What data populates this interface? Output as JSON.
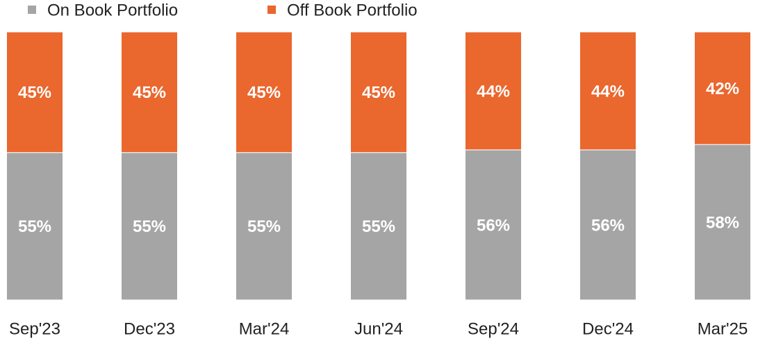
{
  "chart_data": {
    "type": "stacked-bar",
    "categories": [
      "Sep'23",
      "Dec'23",
      "Mar'24",
      "Jun'24",
      "Sep'24",
      "Dec'24",
      "Mar'25"
    ],
    "series": [
      {
        "name": "On Book Portfolio",
        "color": "#a5a5a5",
        "values": [
          55,
          55,
          55,
          55,
          56,
          56,
          58
        ],
        "value_labels": [
          "55%",
          "55%",
          "55%",
          "55%",
          "56%",
          "56%",
          "58%"
        ]
      },
      {
        "name": "Off Book Portfolio",
        "color": "#ea672e",
        "values": [
          45,
          45,
          45,
          45,
          44,
          44,
          42
        ],
        "value_labels": [
          "45%",
          "45%",
          "45%",
          "45%",
          "44%",
          "44%",
          "42%"
        ]
      }
    ],
    "ylim": [
      0,
      100
    ],
    "legend": "top"
  }
}
